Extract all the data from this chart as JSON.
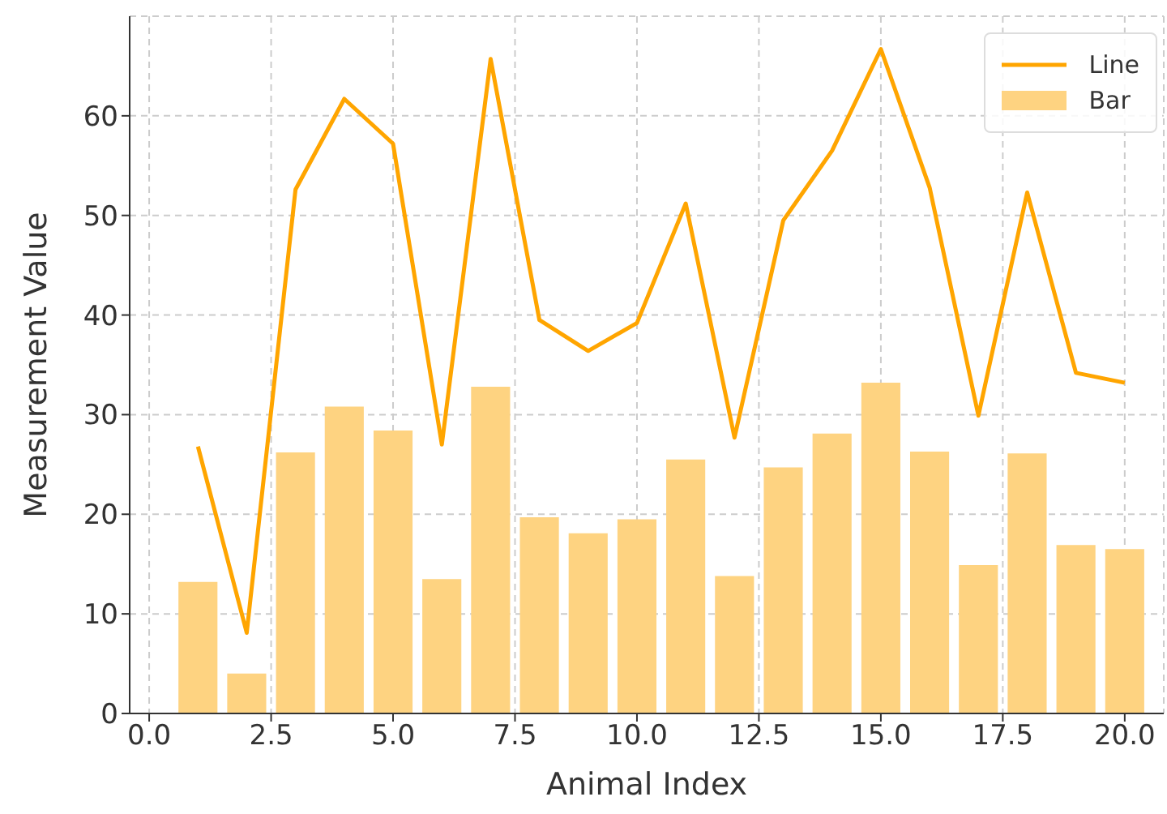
{
  "chart_data": {
    "type": "bar",
    "xlabel": "Animal Index",
    "ylabel": "Measurement Value",
    "x": [
      1,
      2,
      3,
      4,
      5,
      6,
      7,
      8,
      9,
      10,
      11,
      12,
      13,
      14,
      15,
      16,
      17,
      18,
      19,
      20
    ],
    "series": [
      {
        "name": "Line",
        "type": "line",
        "color": "#ffa500",
        "values": [
          26.8,
          8.1,
          52.6,
          61.7,
          57.2,
          27.0,
          65.7,
          39.5,
          36.4,
          39.2,
          51.2,
          27.7,
          49.5,
          56.5,
          66.7,
          52.8,
          29.9,
          52.3,
          34.2,
          33.2
        ]
      },
      {
        "name": "Bar",
        "color": "#fed381",
        "values": [
          13.2,
          4.0,
          26.2,
          30.8,
          28.4,
          13.5,
          32.8,
          19.7,
          18.1,
          19.5,
          25.5,
          13.8,
          24.7,
          28.1,
          33.2,
          26.3,
          14.9,
          26.1,
          16.9,
          16.5
        ]
      }
    ],
    "xlim": [
      -0.4,
      20.8
    ],
    "xticks": [
      {
        "value": 0,
        "label": "0.0"
      },
      {
        "value": 2.5,
        "label": "2.5"
      },
      {
        "value": 5,
        "label": "5.0"
      },
      {
        "value": 7.5,
        "label": "7.5"
      },
      {
        "value": 10,
        "label": "10.0"
      },
      {
        "value": 12.5,
        "label": "12.5"
      },
      {
        "value": 15,
        "label": "15.0"
      },
      {
        "value": 17.5,
        "label": "17.5"
      },
      {
        "value": 20,
        "label": "20.0"
      }
    ],
    "ylim": [
      0,
      70
    ],
    "yticks": [
      0,
      10,
      20,
      30,
      40,
      50,
      60
    ],
    "grid": true,
    "legend": "top right"
  }
}
